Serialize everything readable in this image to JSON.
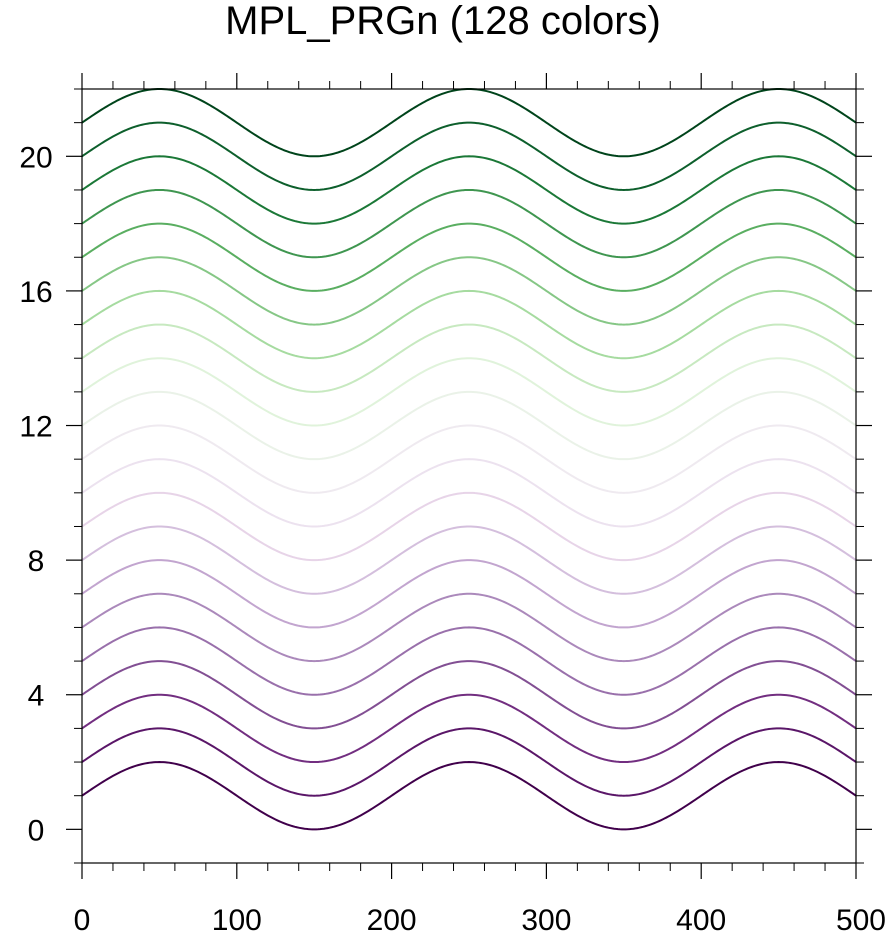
{
  "chart_data": {
    "type": "line",
    "title": "MPL_PRGn (128 colors)",
    "xlabel": "",
    "ylabel": "",
    "xlim": [
      0,
      500
    ],
    "ylim": [
      -1,
      22
    ],
    "x_ticks": [
      0,
      100,
      200,
      300,
      400,
      500
    ],
    "y_ticks": [
      0,
      4,
      8,
      12,
      16,
      20
    ],
    "x_minor_step": 20,
    "y_minor_step": 1,
    "grid": false,
    "legend": "none",
    "curve": {
      "function": "offset + 1 + sin(2*pi*x/200)",
      "x_start": 0,
      "x_end": 500,
      "amplitude": 1,
      "period": 200,
      "baseline": 1
    },
    "series": [
      {
        "offset": 0,
        "color": "#40004b"
      },
      {
        "offset": 1,
        "color": "#5a1668"
      },
      {
        "offset": 2,
        "color": "#722e80"
      },
      {
        "offset": 3,
        "color": "#824f93"
      },
      {
        "offset": 4,
        "color": "#9970ab"
      },
      {
        "offset": 5,
        "color": "#ab89bb"
      },
      {
        "offset": 6,
        "color": "#c2a5cf"
      },
      {
        "offset": 7,
        "color": "#d4bfdd"
      },
      {
        "offset": 8,
        "color": "#e7d4e8"
      },
      {
        "offset": 9,
        "color": "#ece2ef"
      },
      {
        "offset": 10,
        "color": "#efeaf0"
      },
      {
        "offset": 11,
        "color": "#eaf2e8"
      },
      {
        "offset": 12,
        "color": "#e0f3db"
      },
      {
        "offset": 13,
        "color": "#c7e9c0"
      },
      {
        "offset": 14,
        "color": "#a6dba0"
      },
      {
        "offset": 15,
        "color": "#86c786"
      },
      {
        "offset": 16,
        "color": "#5aae61"
      },
      {
        "offset": 17,
        "color": "#3f9650"
      },
      {
        "offset": 18,
        "color": "#1b7837"
      },
      {
        "offset": 19,
        "color": "#0d5f2c"
      },
      {
        "offset": 20,
        "color": "#00441b"
      }
    ]
  }
}
